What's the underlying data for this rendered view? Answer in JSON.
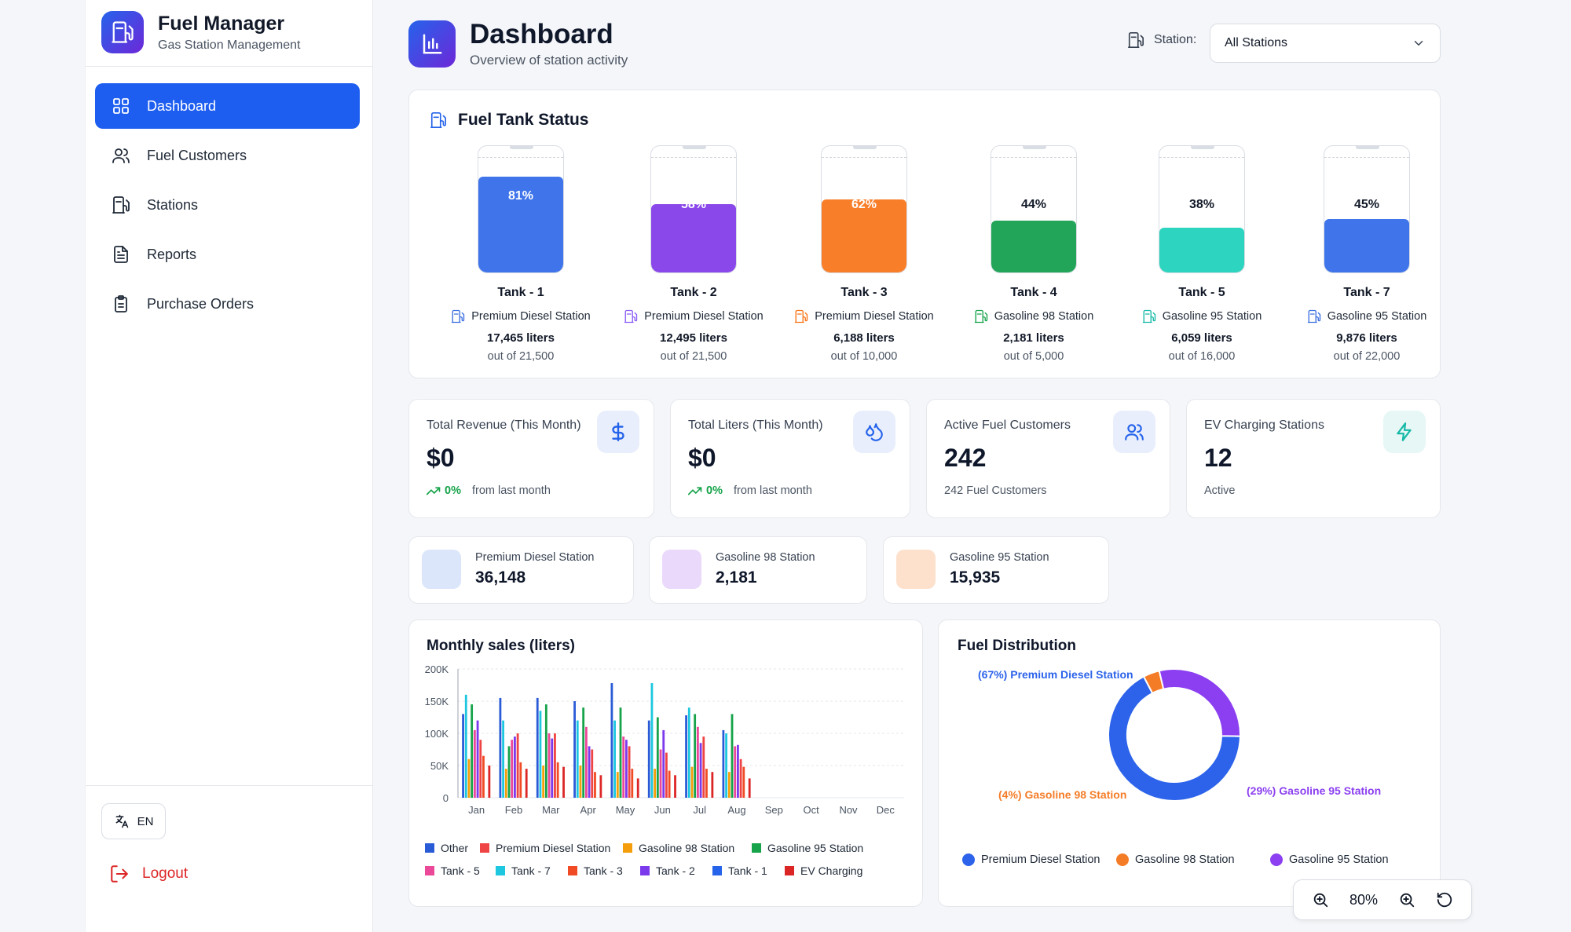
{
  "brand": {
    "title": "Fuel Manager",
    "subtitle": "Gas Station Management"
  },
  "nav": [
    {
      "label": "Dashboard",
      "icon": "grid-icon",
      "active": true
    },
    {
      "label": "Fuel Customers",
      "icon": "users-icon",
      "active": false
    },
    {
      "label": "Stations",
      "icon": "fuel-pump-icon",
      "active": false
    },
    {
      "label": "Reports",
      "icon": "document-icon",
      "active": false
    },
    {
      "label": "Purchase Orders",
      "icon": "clipboard-icon",
      "active": false
    }
  ],
  "language": "EN",
  "logout": "Logout",
  "header": {
    "title": "Dashboard",
    "subtitle": "Overview of station activity",
    "station_label": "Station:",
    "station_value": "All Stations"
  },
  "tanks_card": {
    "title": "Fuel Tank Status",
    "tanks": [
      {
        "name": "Tank - 1",
        "pct": "81%",
        "level": 0.81,
        "station": "Premium Diesel Station",
        "liters": "17,465 liters",
        "out_of": "out of 21,500",
        "color": "#3f74ea",
        "icon_color": "#3b6fe0"
      },
      {
        "name": "Tank - 2",
        "pct": "58%",
        "level": 0.58,
        "station": "Premium Diesel Station",
        "liters": "12,495 liters",
        "out_of": "out of 21,500",
        "color": "#8a48ea",
        "icon_color": "#8b5cf6"
      },
      {
        "name": "Tank - 3",
        "pct": "62%",
        "level": 0.62,
        "station": "Premium Diesel Station",
        "liters": "6,188 liters",
        "out_of": "out of 10,000",
        "color": "#f97e2a",
        "icon_color": "#f97316"
      },
      {
        "name": "Tank - 4",
        "pct": "44%",
        "level": 0.44,
        "station": "Gasoline 98 Station",
        "liters": "2,181 liters",
        "out_of": "out of 5,000",
        "color": "#22a559",
        "icon_color": "#16a34a"
      },
      {
        "name": "Tank - 5",
        "pct": "38%",
        "level": 0.38,
        "station": "Gasoline 95 Station",
        "liters": "6,059 liters",
        "out_of": "out of 16,000",
        "color": "#2dd4bf",
        "icon_color": "#14b8a6"
      },
      {
        "name": "Tank - 7",
        "pct": "45%",
        "level": 0.45,
        "station": "Gasoline 95 Station",
        "liters": "9,876 liters",
        "out_of": "out of 22,000",
        "color": "#3f74ea",
        "icon_color": "#3b6fe0"
      }
    ]
  },
  "stats": [
    {
      "label": "Total Revenue (This Month)",
      "value": "$0",
      "trend": "0%",
      "sub": "from last month",
      "icon": "dollar-icon",
      "icon_bg": "#e8eefc",
      "icon_color": "#2563eb"
    },
    {
      "label": "Total Liters (This Month)",
      "value": "$0",
      "trend": "0%",
      "sub": "from last month",
      "icon": "droplets-icon",
      "icon_bg": "#e8eefc",
      "icon_color": "#2563eb"
    },
    {
      "label": "Active Fuel Customers",
      "value": "242",
      "trend": "",
      "sub": "242 Fuel Customers",
      "icon": "users-icon",
      "icon_bg": "#e8eefc",
      "icon_color": "#2563eb"
    },
    {
      "label": "EV Charging Stations",
      "value": "12",
      "trend": "",
      "sub": "Active",
      "icon": "lightning-icon",
      "icon_bg": "#e6f7f5",
      "icon_color": "#14b8a6"
    }
  ],
  "station_totals": [
    {
      "label": "Premium Diesel Station",
      "value": "36,148",
      "swatch": "#dce6fb"
    },
    {
      "label": "Gasoline 98 Station",
      "value": "2,181",
      "swatch": "#ead9fb"
    },
    {
      "label": "Gasoline 95 Station",
      "value": "15,935",
      "swatch": "#fde1cc"
    }
  ],
  "chart_data": [
    {
      "type": "bar",
      "title": "Monthly sales (liters)",
      "categories": [
        "Jan",
        "Feb",
        "Mar",
        "Apr",
        "May",
        "Jun",
        "Jul",
        "Aug",
        "Sep",
        "Oct",
        "Nov",
        "Dec"
      ],
      "y_ticks": [
        "0",
        "50K",
        "100K",
        "150K",
        "200K"
      ],
      "ylim": [
        0,
        200000
      ],
      "grid": true,
      "legend_position": "bottom",
      "series": [
        {
          "name": "Other",
          "color": "#2a5bd7",
          "values": [
            130000,
            155000,
            155000,
            150000,
            178000,
            120000,
            128000,
            105000,
            0,
            0,
            0,
            0
          ]
        },
        {
          "name": "Tank - 7",
          "color": "#1dc7e0",
          "values": [
            160000,
            120000,
            135000,
            120000,
            120000,
            178000,
            140000,
            100000,
            0,
            0,
            0,
            0
          ]
        },
        {
          "name": "Gasoline 98 Station",
          "color": "#f59e0b",
          "values": [
            60000,
            45000,
            50000,
            50000,
            40000,
            45000,
            48000,
            40000,
            0,
            0,
            0,
            0
          ]
        },
        {
          "name": "Gasoline 95 Station",
          "color": "#16a34a",
          "values": [
            145000,
            80000,
            145000,
            140000,
            140000,
            125000,
            130000,
            130000,
            0,
            0,
            0,
            0
          ]
        },
        {
          "name": "Tank - 5",
          "color": "#ec4899",
          "values": [
            105000,
            90000,
            100000,
            110000,
            95000,
            75000,
            110000,
            80000,
            0,
            0,
            0,
            0
          ]
        },
        {
          "name": "Tank - 2",
          "color": "#7c3aed",
          "values": [
            120000,
            95000,
            92000,
            80000,
            90000,
            105000,
            85000,
            82000,
            0,
            0,
            0,
            0
          ]
        },
        {
          "name": "Premium Diesel Station",
          "color": "#ef4444",
          "values": [
            90000,
            100000,
            100000,
            75000,
            80000,
            70000,
            95000,
            60000,
            0,
            0,
            0,
            0
          ]
        },
        {
          "name": "Tank - 3",
          "color": "#f04b24",
          "values": [
            65000,
            55000,
            55000,
            40000,
            45000,
            42000,
            45000,
            48000,
            0,
            0,
            0,
            0
          ]
        },
        {
          "name": "Tank - 1",
          "color": "#2563eb",
          "values": [
            0,
            0,
            0,
            0,
            0,
            0,
            0,
            0,
            0,
            0,
            0,
            0
          ]
        },
        {
          "name": "EV Charging",
          "color": "#dc2626",
          "values": [
            50000,
            45000,
            48000,
            35000,
            30000,
            35000,
            40000,
            30000,
            0,
            0,
            0,
            0
          ]
        }
      ],
      "legend_order": [
        "Other",
        "Premium Diesel Station",
        "Gasoline 98 Station",
        "Gasoline 95 Station",
        "Tank - 5",
        "Tank - 7",
        "Tank - 3",
        "Tank - 2",
        "Tank - 1",
        "EV Charging"
      ]
    },
    {
      "type": "pie",
      "title": "Fuel Distribution",
      "donut": true,
      "labels": [
        "Premium Diesel Station",
        "Gasoline 98 Station",
        "Gasoline 95 Station"
      ],
      "values": [
        67,
        4,
        29
      ],
      "slice_labels": [
        "(67%) Premium Diesel Station",
        "(4%) Gasoline 98 Station",
        "(29%) Gasoline 95 Station"
      ],
      "colors": [
        "#2c63ea",
        "#f57c27",
        "#8b3ff0"
      ],
      "legend_position": "bottom"
    }
  ],
  "zoom": {
    "level": "80%"
  }
}
